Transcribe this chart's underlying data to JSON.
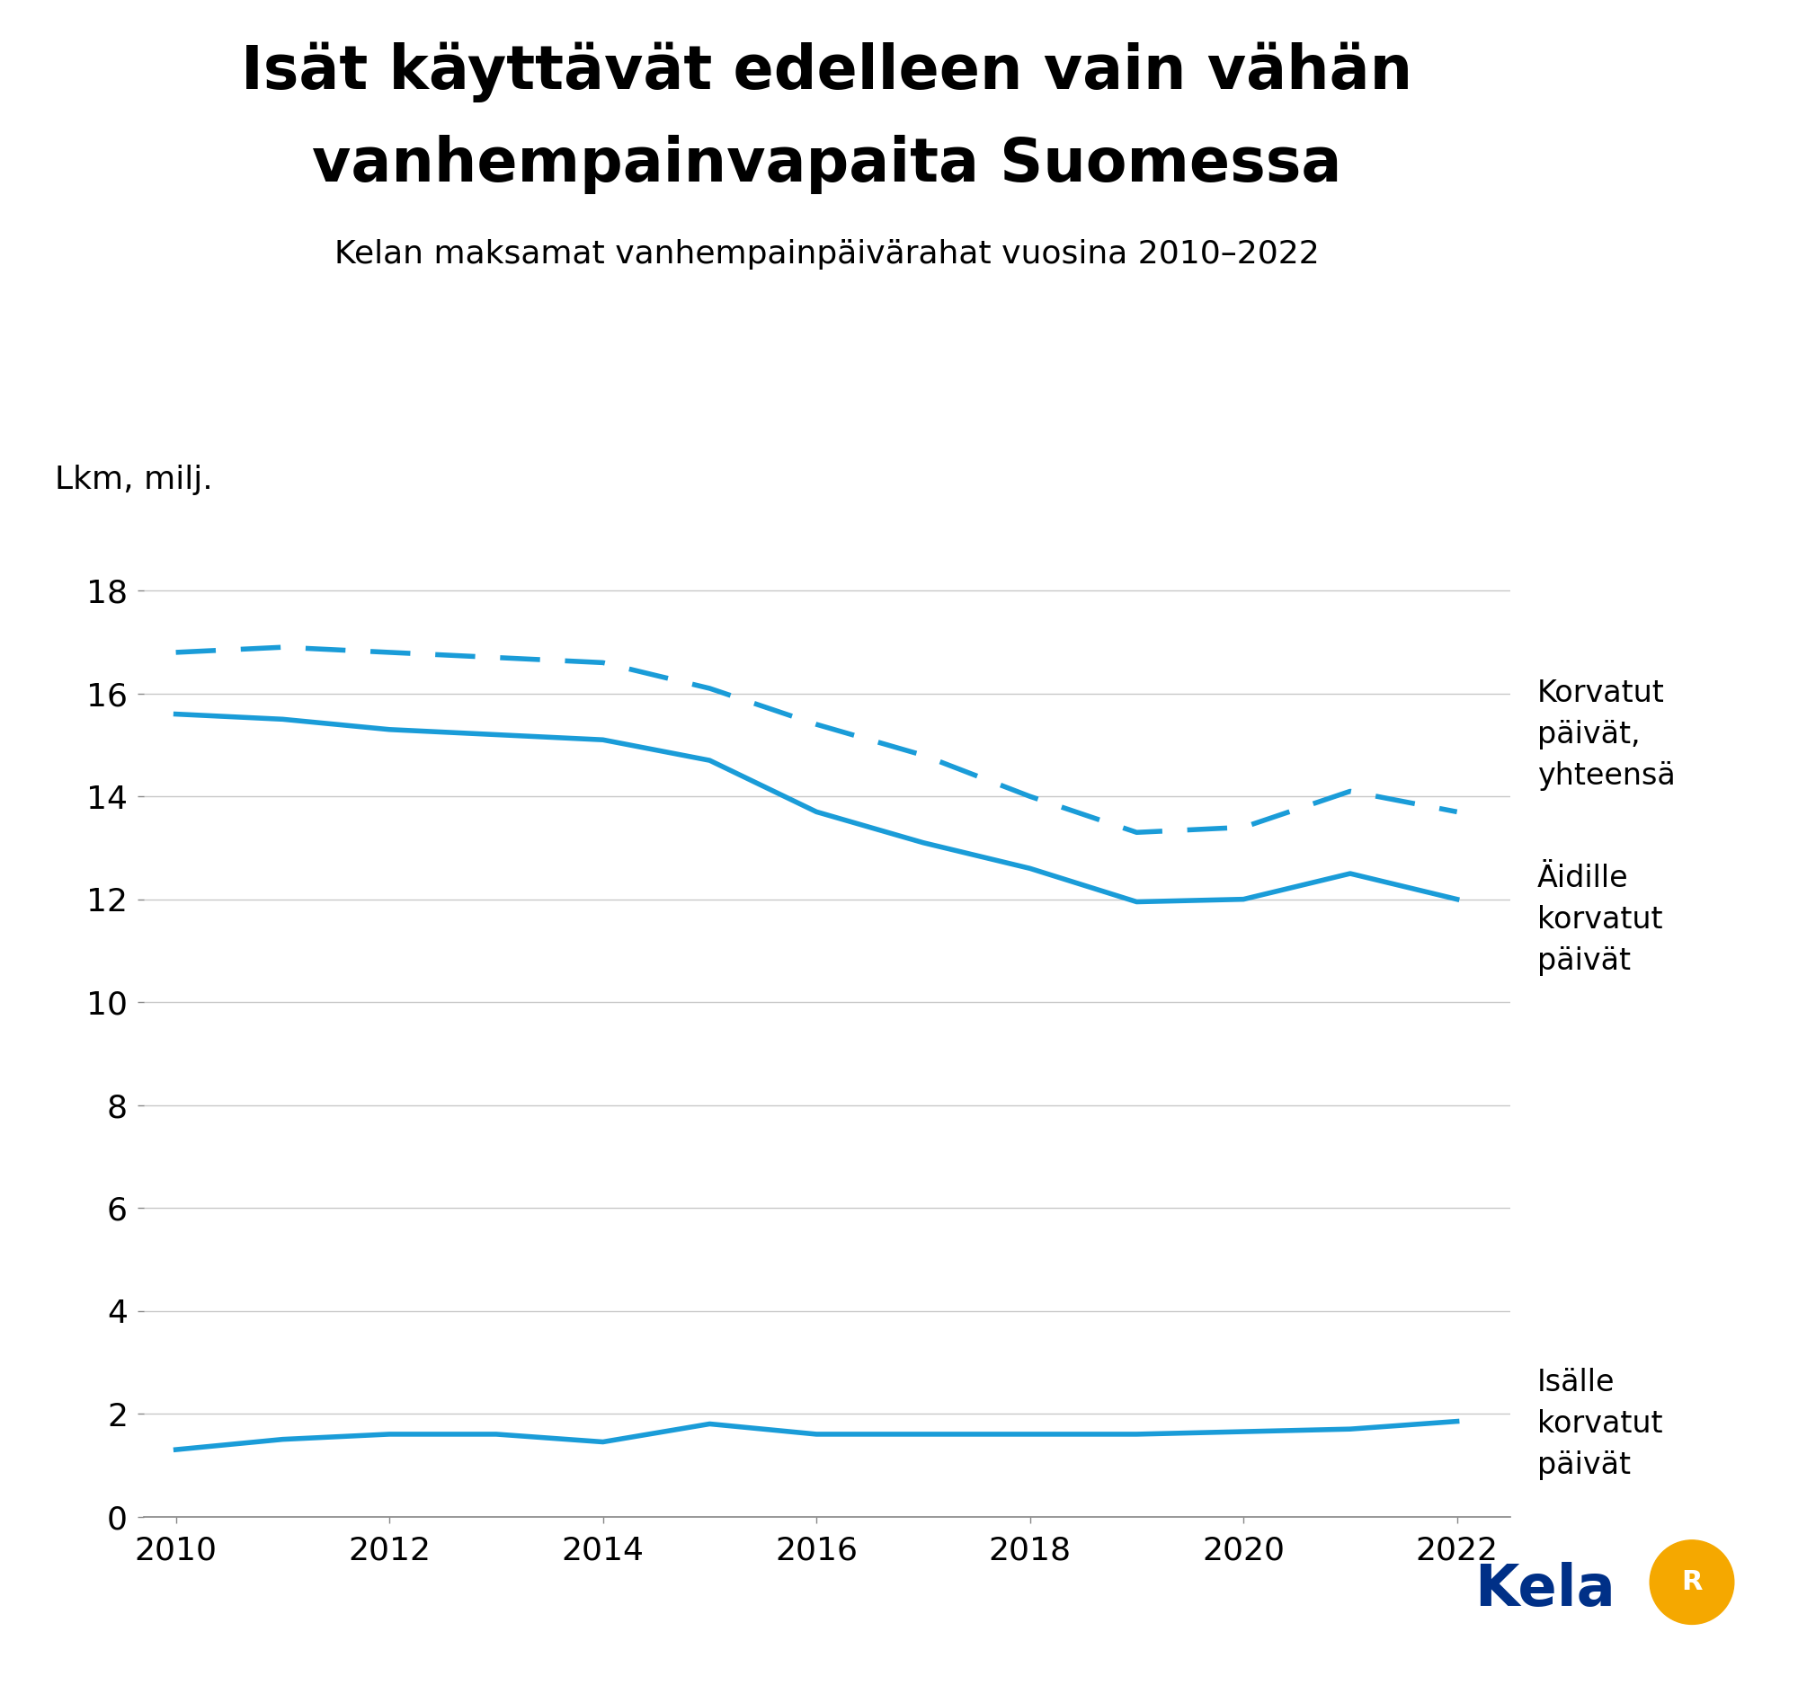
{
  "title_line1": "Isät käyttävät edelleen vain vähän",
  "title_line2": "vanhempainvapaita Suomessa",
  "subtitle": "Kelan maksamat vanhempainpäivärahat vuosina 2010–2022",
  "ylabel": "Lkm, milj.",
  "years": [
    2010,
    2011,
    2012,
    2013,
    2014,
    2015,
    2016,
    2017,
    2018,
    2019,
    2020,
    2021,
    2022
  ],
  "total_days": [
    16.8,
    16.9,
    16.8,
    16.7,
    16.6,
    16.1,
    15.4,
    14.8,
    14.0,
    13.3,
    13.4,
    14.1,
    13.7
  ],
  "mother_days": [
    15.6,
    15.5,
    15.3,
    15.2,
    15.1,
    14.7,
    13.7,
    13.1,
    12.6,
    11.95,
    12.0,
    12.5,
    12.0
  ],
  "father_days": [
    1.3,
    1.5,
    1.6,
    1.6,
    1.45,
    1.8,
    1.6,
    1.6,
    1.6,
    1.6,
    1.65,
    1.7,
    1.85
  ],
  "line_color": "#1a9cd8",
  "background_color": "#ffffff",
  "text_color": "#000000",
  "grid_color": "#c8c8c8",
  "ylim": [
    0,
    19
  ],
  "yticks": [
    0,
    2,
    4,
    6,
    8,
    10,
    12,
    14,
    16,
    18
  ],
  "label_total": "Korvatut\npäivät,\nyhteensä",
  "label_mother": "Äidille\nkorvatut\npäivät",
  "label_father": "Isälle\nkorvatut\npäivät",
  "kela_text": "Kela",
  "kela_text_color": "#003087",
  "kela_circle_color": "#f5a800"
}
